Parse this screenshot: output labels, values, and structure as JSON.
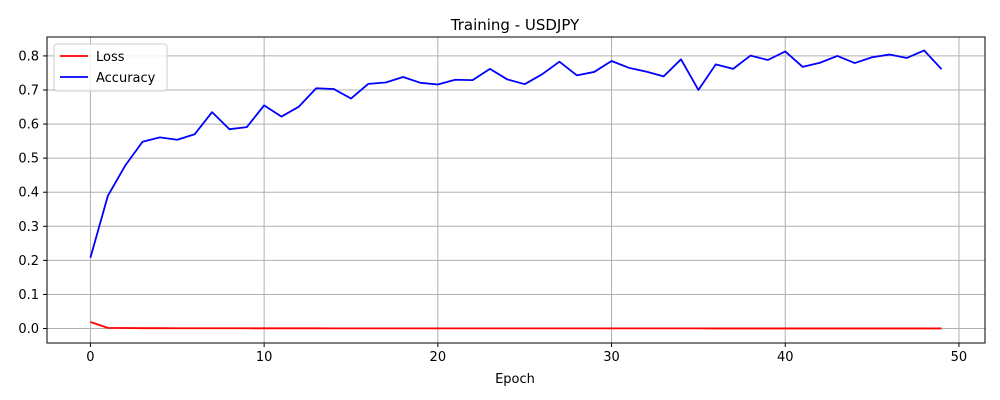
{
  "chart_data": {
    "type": "line",
    "title": "Training - USDJPY",
    "xlabel": "Epoch",
    "ylabel": "",
    "xlim": [
      -2.5,
      51.5
    ],
    "ylim": [
      -0.0425,
      0.8555
    ],
    "xticks": [
      0,
      10,
      20,
      30,
      40,
      50
    ],
    "yticks": [
      0.0,
      0.1,
      0.2,
      0.3,
      0.4,
      0.5,
      0.6,
      0.7,
      0.8
    ],
    "ytick_labels": [
      "0.0",
      "0.1",
      "0.2",
      "0.3",
      "0.4",
      "0.5",
      "0.6",
      "0.7",
      "0.8"
    ],
    "grid": true,
    "legend": "top-left",
    "x": [
      0,
      1,
      2,
      3,
      4,
      5,
      6,
      7,
      8,
      9,
      10,
      11,
      12,
      13,
      14,
      15,
      16,
      17,
      18,
      19,
      20,
      21,
      22,
      23,
      24,
      25,
      26,
      27,
      28,
      29,
      30,
      31,
      32,
      33,
      34,
      35,
      36,
      37,
      38,
      39,
      40,
      41,
      42,
      43,
      44,
      45,
      46,
      47,
      48,
      49
    ],
    "series": [
      {
        "name": "Loss",
        "color": "#ff0000",
        "values": [
          0.019,
          0.002,
          0.0015,
          0.001,
          0.001,
          0.0008,
          0.0008,
          0.0007,
          0.0007,
          0.0007,
          0.0006,
          0.0006,
          0.0006,
          0.0006,
          0.0005,
          0.0005,
          0.0005,
          0.0005,
          0.0005,
          0.0005,
          0.0005,
          0.0005,
          0.0004,
          0.0004,
          0.0004,
          0.0004,
          0.0004,
          0.0004,
          0.0004,
          0.0004,
          0.0004,
          0.0004,
          0.0004,
          0.0004,
          0.0004,
          0.0004,
          0.0003,
          0.0003,
          0.0003,
          0.0003,
          0.0003,
          0.0003,
          0.0003,
          0.0003,
          0.0003,
          0.0003,
          0.0003,
          0.0003,
          0.0003,
          0.0003
        ]
      },
      {
        "name": "Accuracy",
        "color": "#0000ff",
        "values": [
          0.208,
          0.389,
          0.478,
          0.548,
          0.561,
          0.554,
          0.57,
          0.635,
          0.585,
          0.591,
          0.655,
          0.622,
          0.651,
          0.705,
          0.703,
          0.675,
          0.718,
          0.722,
          0.738,
          0.721,
          0.716,
          0.73,
          0.729,
          0.762,
          0.731,
          0.717,
          0.746,
          0.783,
          0.743,
          0.753,
          0.785,
          0.765,
          0.754,
          0.74,
          0.79,
          0.7,
          0.775,
          0.762,
          0.801,
          0.788,
          0.813,
          0.768,
          0.78,
          0.8,
          0.779,
          0.796,
          0.804,
          0.794,
          0.816,
          0.761
        ]
      }
    ]
  }
}
